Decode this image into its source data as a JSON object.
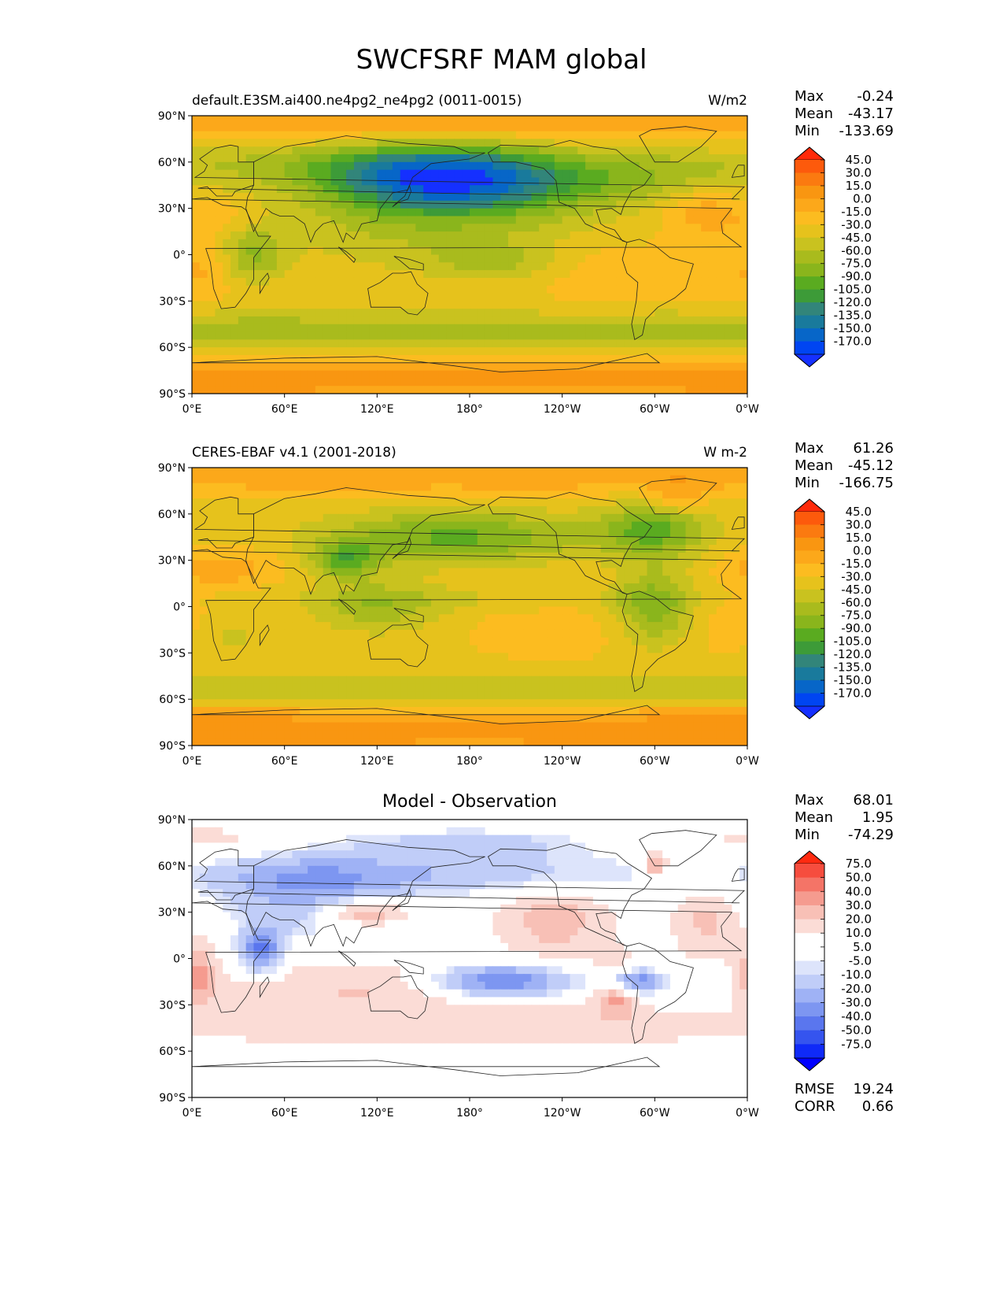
{
  "title": "SWCFSRF MAM global",
  "axes": {
    "lat_ticks": [
      "90°N",
      "60°N",
      "30°N",
      "0°",
      "30°S",
      "60°S",
      "90°S"
    ],
    "lon_ticks": [
      "0°E",
      "60°E",
      "120°E",
      "180°",
      "120°W",
      "60°W",
      "0°W"
    ]
  },
  "panels": [
    {
      "label": "default.E3SM.ai400.ne4pg2_ne4pg2 (0011-0015)",
      "units": "W/m2",
      "stats": [
        {
          "name": "Max",
          "value": "-0.24"
        },
        {
          "name": "Mean",
          "value": "-43.17"
        },
        {
          "name": "Min",
          "value": "-133.69"
        }
      ],
      "colorbar": {
        "labels": [
          "45.0",
          "30.0",
          "15.0",
          "0.0",
          "-15.0",
          "-30.0",
          "-45.0",
          "-60.0",
          "-75.0",
          "-90.0",
          "-105.0",
          "-120.0",
          "-135.0",
          "-150.0",
          "-170.0"
        ],
        "colors": [
          "#ff2a0a",
          "#fd5a0c",
          "#fb7a10",
          "#f99611",
          "#fca81a",
          "#fcbc20",
          "#e6c21c",
          "#c9c21f",
          "#a9bb1d",
          "#8ab51c",
          "#5aab20",
          "#3d9b38",
          "#32857a",
          "#197a9c",
          "#0766c8",
          "#0045f2",
          "#1530ff"
        ]
      }
    },
    {
      "label": "CERES-EBAF v4.1 (2001-2018)",
      "units": "W m-2",
      "stats": [
        {
          "name": "Max",
          "value": "61.26"
        },
        {
          "name": "Mean",
          "value": "-45.12"
        },
        {
          "name": "Min",
          "value": "-166.75"
        }
      ],
      "colorbar": {
        "labels": [
          "45.0",
          "30.0",
          "15.0",
          "0.0",
          "-15.0",
          "-30.0",
          "-45.0",
          "-60.0",
          "-75.0",
          "-90.0",
          "-105.0",
          "-120.0",
          "-135.0",
          "-150.0",
          "-170.0"
        ],
        "colors": [
          "#ff2a0a",
          "#fd5a0c",
          "#fb7a10",
          "#f99611",
          "#fca81a",
          "#fcbc20",
          "#e6c21c",
          "#c9c21f",
          "#a9bb1d",
          "#8ab51c",
          "#5aab20",
          "#3d9b38",
          "#32857a",
          "#197a9c",
          "#0766c8",
          "#0045f2",
          "#1530ff"
        ]
      }
    },
    {
      "center_title": "Model - Observation",
      "stats": [
        {
          "name": "Max",
          "value": "68.01"
        },
        {
          "name": "Mean",
          "value": "1.95"
        },
        {
          "name": "Min",
          "value": "-74.29"
        }
      ],
      "extra_stats": [
        {
          "name": "RMSE",
          "value": "19.24"
        },
        {
          "name": "CORR",
          "value": "0.66"
        }
      ],
      "colorbar": {
        "labels": [
          "75.0",
          "50.0",
          "40.0",
          "30.0",
          "20.0",
          "10.0",
          "5.0",
          "-5.0",
          "-10.0",
          "-20.0",
          "-30.0",
          "-40.0",
          "-50.0",
          "-75.0"
        ],
        "colors": [
          "#ff2a10",
          "#f64d3e",
          "#f47467",
          "#f59b8f",
          "#f8c0b6",
          "#fbdcd6",
          "#ffffff",
          "#ffffff",
          "#dde4fb",
          "#c0cdf8",
          "#9fb2f5",
          "#7d96f1",
          "#5a76ee",
          "#3554ef",
          "#0f2af8",
          "#0000ff"
        ]
      }
    }
  ]
}
